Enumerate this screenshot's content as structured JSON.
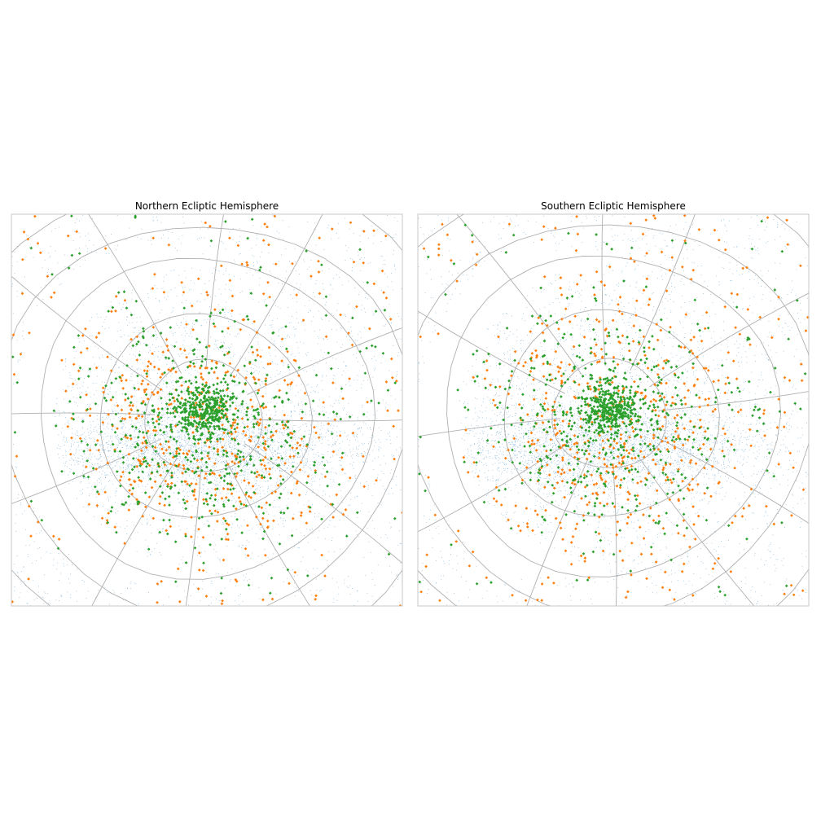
{
  "figure": {
    "background": "#ffffff"
  },
  "chart_data": [
    {
      "type": "scatter",
      "title": "Northern Ecliptic Hemisphere",
      "projection": "polar sky map (ecliptic pole at center)",
      "grid": true,
      "axes_ticks": "none",
      "grid_style": {
        "color": "#b0b0b0",
        "parallels": 5,
        "meridians": 12
      },
      "series": [
        {
          "marker": "tiny dot",
          "color": "#1f77b4",
          "density": "very dense background field, densest along a horizontal band through the center"
        },
        {
          "marker": "small diamond",
          "color": "#ff7f0e",
          "density": "scattered, spread across the whole field, more common toward the edge"
        },
        {
          "marker": "small diamond",
          "color": "#2ca02c",
          "density": "strongly concentrated toward the center"
        }
      ]
    },
    {
      "type": "scatter",
      "title": "Southern Ecliptic Hemisphere",
      "projection": "polar sky map (ecliptic pole at center)",
      "grid": true,
      "axes_ticks": "none",
      "grid_style": {
        "color": "#b0b0b0",
        "parallels": 5,
        "meridians": 12
      },
      "series": [
        {
          "marker": "tiny dot",
          "color": "#1f77b4",
          "density": "very dense background field, densest along a horizontal band through the center"
        },
        {
          "marker": "small diamond",
          "color": "#ff7f0e",
          "density": "scattered, spread across the whole field, more common toward the edge"
        },
        {
          "marker": "small diamond",
          "color": "#2ca02c",
          "density": "strongly concentrated toward the center"
        }
      ]
    }
  ]
}
